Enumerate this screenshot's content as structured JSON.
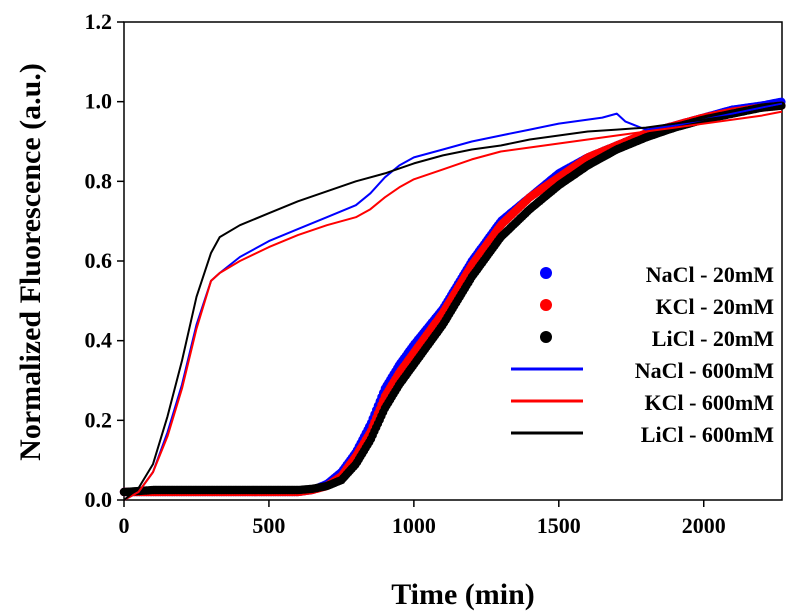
{
  "chart_data": {
    "type": "line",
    "title": "",
    "xlabel": "Time (min)",
    "ylabel": "Normalized Fluorescence (a.u.)",
    "xlim": [
      0,
      2270
    ],
    "ylim": [
      0,
      1.2
    ],
    "xticks": [
      0,
      500,
      1000,
      1500,
      2000
    ],
    "xtick_labels": [
      "0",
      "500",
      "1000",
      "1500",
      "2000"
    ],
    "yticks": [
      0.0,
      0.2,
      0.4,
      0.6,
      0.8,
      1.0,
      1.2
    ],
    "ytick_labels": [
      "0.0",
      "0.2",
      "0.4",
      "0.6",
      "0.8",
      "1.0",
      "1.2"
    ],
    "grid": false,
    "legend_position": "right",
    "series": [
      {
        "name": "NaCl - 20mM",
        "style": "points",
        "color": "#0000ff",
        "x": [
          0,
          100,
          200,
          300,
          400,
          500,
          600,
          650,
          700,
          750,
          800,
          850,
          900,
          950,
          1000,
          1100,
          1200,
          1300,
          1400,
          1500,
          1600,
          1700,
          1800,
          1900,
          2000,
          2100,
          2200,
          2270
        ],
        "y": [
          0.02,
          0.02,
          0.02,
          0.02,
          0.02,
          0.02,
          0.02,
          0.025,
          0.04,
          0.07,
          0.12,
          0.19,
          0.28,
          0.34,
          0.39,
          0.48,
          0.6,
          0.7,
          0.76,
          0.82,
          0.86,
          0.89,
          0.92,
          0.94,
          0.96,
          0.98,
          0.99,
          1.0
        ]
      },
      {
        "name": "KCl - 20mM",
        "style": "points",
        "color": "#ff0000",
        "x": [
          0,
          100,
          200,
          300,
          400,
          500,
          600,
          650,
          700,
          750,
          800,
          850,
          900,
          950,
          1000,
          1100,
          1200,
          1300,
          1400,
          1500,
          1600,
          1700,
          1800,
          1900,
          2000,
          2100,
          2200,
          2270
        ],
        "y": [
          0.02,
          0.02,
          0.02,
          0.02,
          0.02,
          0.02,
          0.02,
          0.025,
          0.035,
          0.06,
          0.11,
          0.17,
          0.26,
          0.32,
          0.37,
          0.47,
          0.59,
          0.69,
          0.76,
          0.81,
          0.86,
          0.89,
          0.92,
          0.94,
          0.96,
          0.975,
          0.985,
          0.99
        ]
      },
      {
        "name": "LiCl - 20mM",
        "style": "points",
        "color": "#000000",
        "x": [
          0,
          100,
          200,
          300,
          400,
          500,
          600,
          650,
          700,
          750,
          800,
          850,
          900,
          950,
          1000,
          1100,
          1200,
          1300,
          1400,
          1500,
          1600,
          1700,
          1800,
          1900,
          2000,
          2100,
          2200,
          2270
        ],
        "y": [
          0.02,
          0.025,
          0.025,
          0.025,
          0.025,
          0.025,
          0.025,
          0.028,
          0.035,
          0.05,
          0.09,
          0.15,
          0.23,
          0.29,
          0.34,
          0.44,
          0.56,
          0.66,
          0.73,
          0.79,
          0.84,
          0.88,
          0.91,
          0.935,
          0.955,
          0.97,
          0.985,
          0.99
        ]
      },
      {
        "name": "NaCl - 600mM",
        "style": "line",
        "color": "#0000ff",
        "x": [
          0,
          50,
          100,
          150,
          200,
          250,
          300,
          330,
          400,
          500,
          600,
          700,
          800,
          850,
          900,
          950,
          1000,
          1100,
          1200,
          1300,
          1400,
          1500,
          1600,
          1650,
          1700,
          1730,
          1800,
          1900,
          2000,
          2100,
          2200,
          2270
        ],
        "y": [
          0.0,
          0.02,
          0.07,
          0.17,
          0.29,
          0.44,
          0.55,
          0.57,
          0.61,
          0.65,
          0.68,
          0.71,
          0.74,
          0.77,
          0.81,
          0.84,
          0.86,
          0.88,
          0.9,
          0.915,
          0.93,
          0.945,
          0.955,
          0.96,
          0.97,
          0.95,
          0.93,
          0.94,
          0.955,
          0.97,
          0.985,
          0.995
        ]
      },
      {
        "name": "KCl - 600mM",
        "style": "line",
        "color": "#ff0000",
        "x": [
          0,
          50,
          100,
          150,
          200,
          250,
          300,
          330,
          400,
          500,
          600,
          700,
          800,
          850,
          900,
          950,
          1000,
          1100,
          1200,
          1300,
          1400,
          1500,
          1600,
          1700,
          1800,
          1900,
          2000,
          2100,
          2200,
          2270
        ],
        "y": [
          0.0,
          0.02,
          0.07,
          0.16,
          0.28,
          0.43,
          0.55,
          0.57,
          0.6,
          0.635,
          0.665,
          0.69,
          0.71,
          0.73,
          0.76,
          0.785,
          0.805,
          0.83,
          0.855,
          0.875,
          0.885,
          0.895,
          0.905,
          0.915,
          0.925,
          0.935,
          0.945,
          0.955,
          0.965,
          0.975
        ]
      },
      {
        "name": "LiCl - 600mM",
        "style": "line",
        "color": "#000000",
        "x": [
          0,
          50,
          100,
          150,
          200,
          250,
          300,
          330,
          400,
          500,
          600,
          700,
          800,
          900,
          1000,
          1100,
          1200,
          1300,
          1400,
          1500,
          1600,
          1700,
          1800,
          1900,
          2000,
          2100,
          2200,
          2270
        ],
        "y": [
          0.0,
          0.03,
          0.09,
          0.21,
          0.35,
          0.51,
          0.62,
          0.66,
          0.69,
          0.72,
          0.75,
          0.775,
          0.8,
          0.82,
          0.845,
          0.865,
          0.88,
          0.89,
          0.905,
          0.915,
          0.925,
          0.93,
          0.935,
          0.945,
          0.955,
          0.965,
          0.98,
          0.99
        ]
      }
    ]
  }
}
